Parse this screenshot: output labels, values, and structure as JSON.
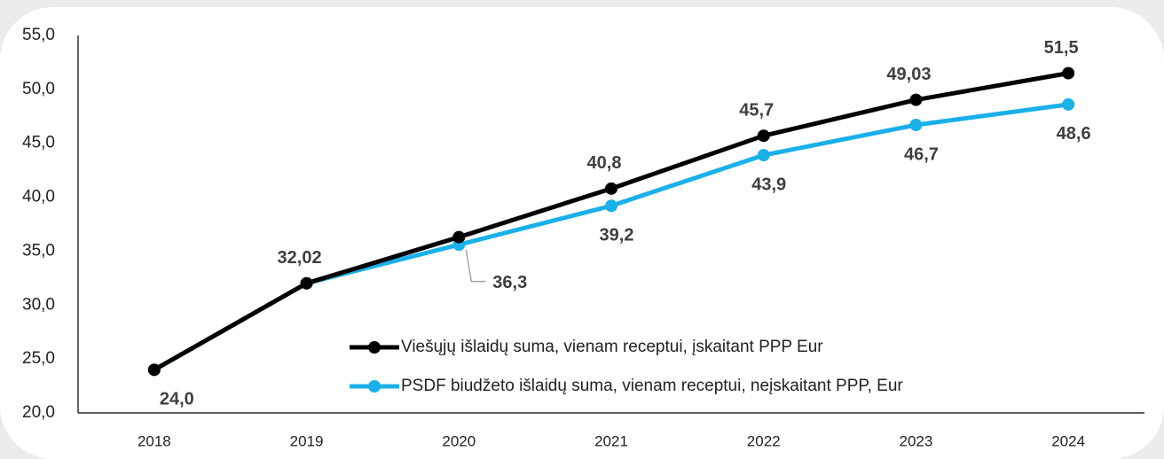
{
  "chart_data": {
    "type": "line",
    "categories": [
      "2018",
      "2019",
      "2020",
      "2021",
      "2022",
      "2023",
      "2024"
    ],
    "series": [
      {
        "name": "Viešųjų išlaidų suma, vienam receptui, įskaitant PPP Eur",
        "color": "#000000",
        "values": [
          24.0,
          32.02,
          36.3,
          40.8,
          45.7,
          49.03,
          51.5
        ],
        "value_labels": [
          null,
          "32,02",
          "36,3",
          "40,8",
          "45,7",
          "49,03",
          "51,5"
        ]
      },
      {
        "name": "PSDF biudžeto išlaidų suma, vienam receptui, neįskaitant PPP, Eur",
        "color": "#1ab0ea",
        "values": [
          24.0,
          32.02,
          35.6,
          39.2,
          43.9,
          46.7,
          48.6
        ],
        "value_labels": [
          "24,0",
          null,
          null,
          "39,2",
          "43,9",
          "46,7",
          "48,6"
        ]
      }
    ],
    "ylim": [
      20,
      55
    ],
    "yticks": [
      {
        "value": 20,
        "label": "20,0"
      },
      {
        "value": 25,
        "label": "25,0"
      },
      {
        "value": 30,
        "label": "30,0"
      },
      {
        "value": 35,
        "label": "35,0"
      },
      {
        "value": 40,
        "label": "40,0"
      },
      {
        "value": 45,
        "label": "45,0"
      },
      {
        "value": 50,
        "label": "50,0"
      },
      {
        "value": 55,
        "label": "55,0"
      }
    ],
    "grid": false,
    "legend": "lower right"
  }
}
